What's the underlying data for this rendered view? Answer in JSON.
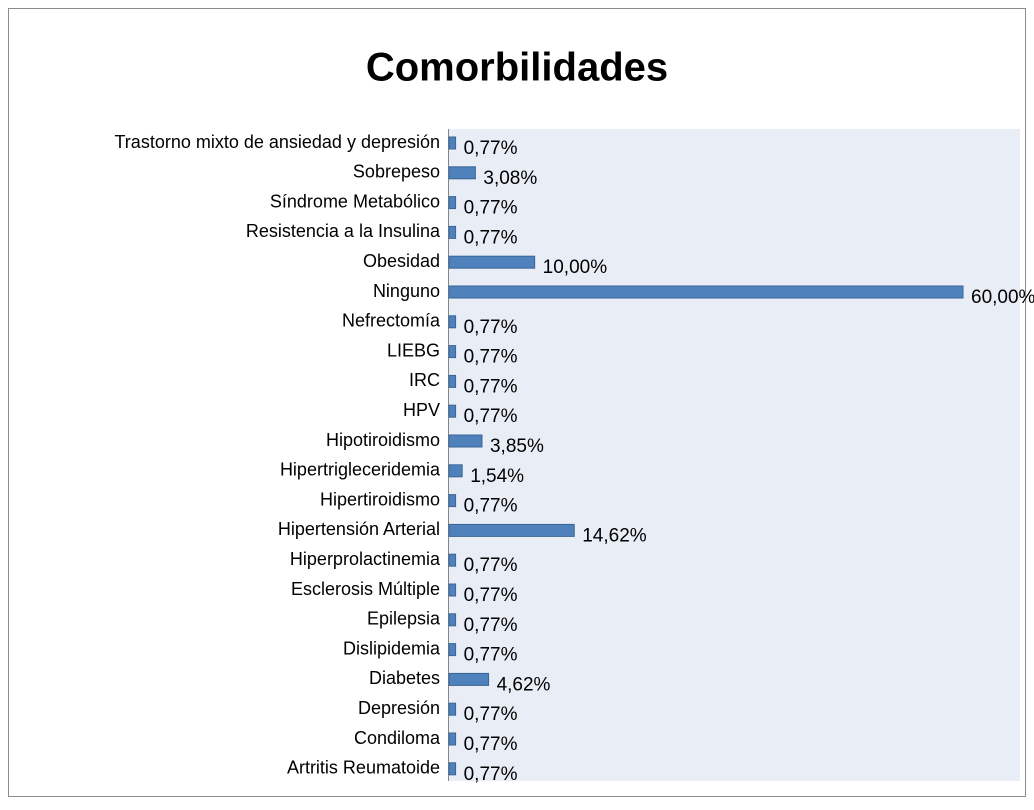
{
  "chart_data": {
    "type": "bar",
    "orientation": "horizontal",
    "title": "Comorbilidades",
    "categories": [
      "Trastorno mixto de ansiedad y depresión",
      "Sobrepeso",
      "Síndrome Metabólico",
      "Resistencia a la Insulina",
      "Obesidad",
      "Ninguno",
      "Nefrectomía",
      "LIEBG",
      "IRC",
      "HPV",
      "Hipotiroidismo",
      "Hipertrigleceridemia",
      "Hipertiroidismo",
      "Hipertensión Arterial",
      "Hiperprolactinemia",
      "Esclerosis Múltiple",
      "Epilepsia",
      "Dislipidemia",
      "Diabetes",
      "Depresión",
      "Condiloma",
      "Artritis Reumatoide"
    ],
    "values": [
      0.77,
      3.08,
      0.77,
      0.77,
      10.0,
      60.0,
      0.77,
      0.77,
      0.77,
      0.77,
      3.85,
      1.54,
      0.77,
      14.62,
      0.77,
      0.77,
      0.77,
      0.77,
      4.62,
      0.77,
      0.77,
      0.77
    ],
    "value_labels": [
      "0,77%",
      "3,08%",
      "0,77%",
      "0,77%",
      "10,00%",
      "60,00%",
      "0,77%",
      "0,77%",
      "0,77%",
      "0,77%",
      "3,85%",
      "1,54%",
      "0,77%",
      "14,62%",
      "0,77%",
      "0,77%",
      "0,77%",
      "0,77%",
      "4,62%",
      "0,77%",
      "0,77%",
      "0,77%"
    ],
    "color": "#4f81bd"
  }
}
